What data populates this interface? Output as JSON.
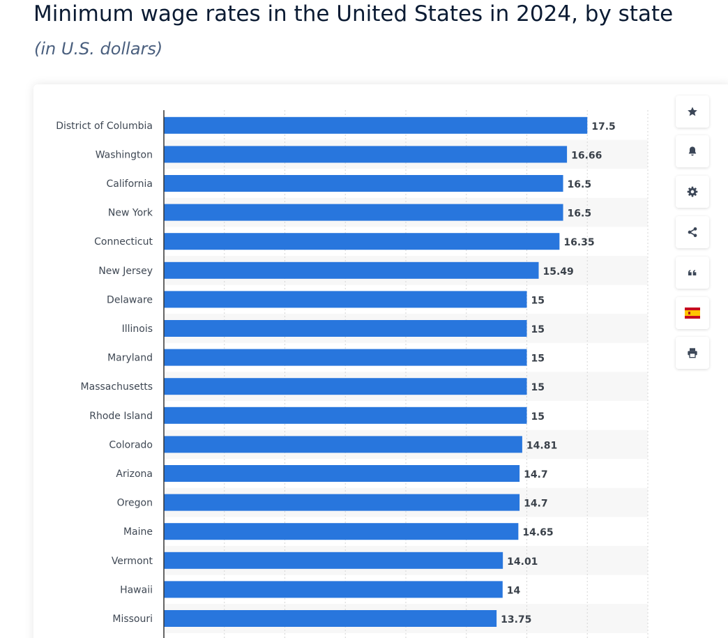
{
  "header": {
    "title": "Minimum wage rates in the United States in 2024, by state",
    "subtitle": "(in U.S. dollars)"
  },
  "toolbar": {
    "buttons": [
      {
        "name": "favorite-button",
        "icon": "star-icon"
      },
      {
        "name": "notification-button",
        "icon": "bell-icon"
      },
      {
        "name": "settings-button",
        "icon": "gear-icon"
      },
      {
        "name": "share-button",
        "icon": "share-icon"
      },
      {
        "name": "cite-button",
        "icon": "quote-icon"
      },
      {
        "name": "language-button",
        "icon": "spanish-flag-icon"
      },
      {
        "name": "print-button",
        "icon": "printer-icon"
      }
    ]
  },
  "colors": {
    "bar": "#2876dd",
    "band": "#f7f7f7",
    "grid": "#d5d5d5",
    "axis": "#333333",
    "icon": "#3b4657"
  },
  "chart_data": {
    "type": "bar",
    "orientation": "horizontal",
    "title": "Minimum wage rates in the United States in 2024, by state",
    "subtitle": "(in U.S. dollars)",
    "categories": [
      "District of Columbia",
      "Washington",
      "California",
      "New York",
      "Connecticut",
      "New Jersey",
      "Delaware",
      "Illinois",
      "Maryland",
      "Massachusetts",
      "Rhode Island",
      "Colorado",
      "Arizona",
      "Oregon",
      "Maine",
      "Vermont",
      "Hawaii",
      "Missouri"
    ],
    "values": [
      17.5,
      16.66,
      16.5,
      16.5,
      16.35,
      15.49,
      15,
      15,
      15,
      15,
      15,
      14.81,
      14.7,
      14.7,
      14.65,
      14.01,
      14,
      13.75
    ],
    "value_labels": [
      "17.5",
      "16.66",
      "16.5",
      "16.5",
      "16.35",
      "15.49",
      "15",
      "15",
      "15",
      "15",
      "15",
      "14.81",
      "14.7",
      "14.7",
      "14.65",
      "14.01",
      "14",
      "13.75"
    ],
    "xlim": [
      0,
      20
    ],
    "grid": true,
    "xlabel": "",
    "ylabel": ""
  }
}
